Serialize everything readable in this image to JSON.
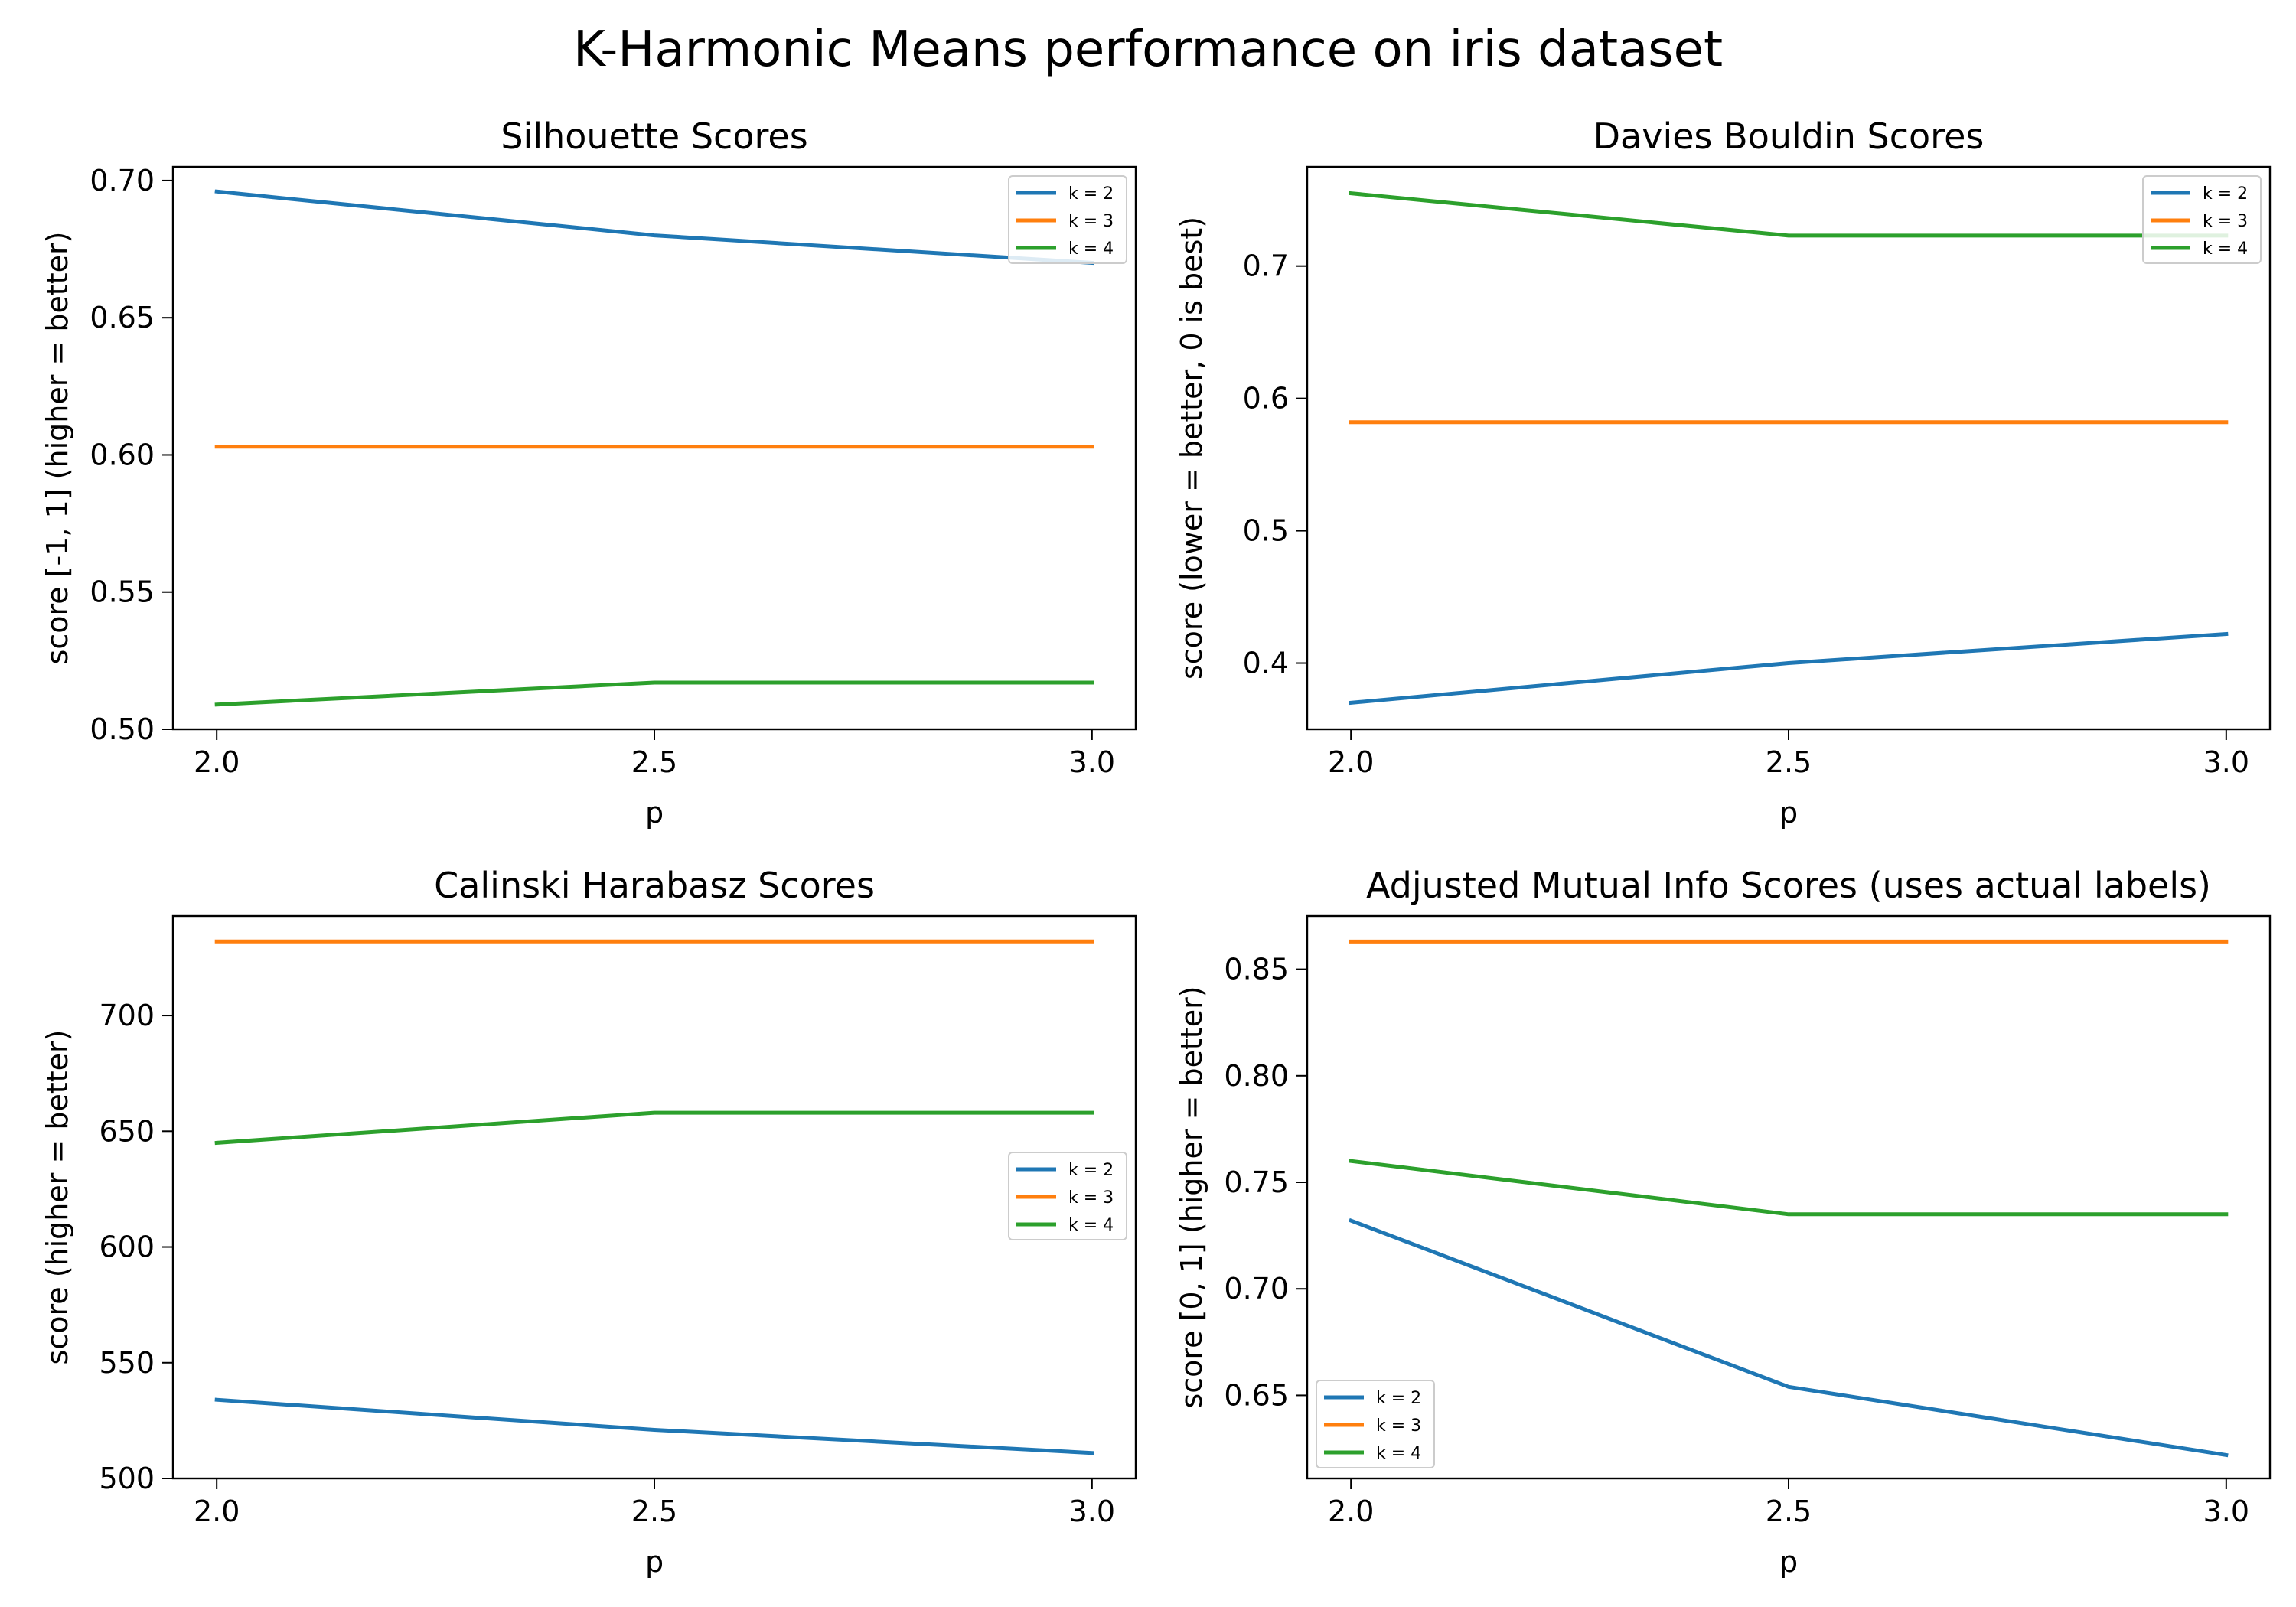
{
  "figure": {
    "title": "K-Harmonic Means performance on iris dataset"
  },
  "colors": {
    "k2": "#1f77b4",
    "k3": "#ff7f0e",
    "k4": "#2ca02c"
  },
  "chart_data": [
    {
      "type": "line",
      "title": "Silhouette Scores",
      "xlabel": "p",
      "ylabel": "score [-1, 1] (higher = better)",
      "xlim": [
        1.95,
        3.05
      ],
      "ylim": [
        0.5,
        0.705
      ],
      "xticks": [
        "2.0",
        "2.5",
        "3.0"
      ],
      "xtick_values": [
        2.0,
        2.5,
        3.0
      ],
      "yticks": [
        "0.50",
        "0.55",
        "0.60",
        "0.65",
        "0.70"
      ],
      "ytick_values": [
        0.5,
        0.55,
        0.6,
        0.65,
        0.7
      ],
      "legend_position": "top-right",
      "x": [
        2.0,
        2.5,
        3.0
      ],
      "series": [
        {
          "name": "k = 2",
          "color": "#1f77b4",
          "values": [
            0.696,
            0.68,
            0.67
          ]
        },
        {
          "name": "k = 3",
          "color": "#ff7f0e",
          "values": [
            0.603,
            0.603,
            0.603
          ]
        },
        {
          "name": "k = 4",
          "color": "#2ca02c",
          "values": [
            0.509,
            0.517,
            0.517
          ]
        }
      ]
    },
    {
      "type": "line",
      "title": "Davies Bouldin Scores",
      "xlabel": "p",
      "ylabel": "score (lower = better, 0 is best)",
      "xlim": [
        1.95,
        3.05
      ],
      "ylim": [
        0.35,
        0.775
      ],
      "xticks": [
        "2.0",
        "2.5",
        "3.0"
      ],
      "xtick_values": [
        2.0,
        2.5,
        3.0
      ],
      "yticks": [
        "0.4",
        "0.5",
        "0.6",
        "0.7"
      ],
      "ytick_values": [
        0.4,
        0.5,
        0.6,
        0.7
      ],
      "legend_position": "top-right",
      "x": [
        2.0,
        2.5,
        3.0
      ],
      "series": [
        {
          "name": "k = 2",
          "color": "#1f77b4",
          "values": [
            0.37,
            0.4,
            0.422
          ]
        },
        {
          "name": "k = 3",
          "color": "#ff7f0e",
          "values": [
            0.582,
            0.582,
            0.582
          ]
        },
        {
          "name": "k = 4",
          "color": "#2ca02c",
          "values": [
            0.755,
            0.723,
            0.723
          ]
        }
      ]
    },
    {
      "type": "line",
      "title": "Calinski Harabasz Scores",
      "xlabel": "p",
      "ylabel": "score (higher = better)",
      "xlim": [
        1.95,
        3.05
      ],
      "ylim": [
        500,
        743
      ],
      "xticks": [
        "2.0",
        "2.5",
        "3.0"
      ],
      "xtick_values": [
        2.0,
        2.5,
        3.0
      ],
      "yticks": [
        "500",
        "550",
        "600",
        "650",
        "700"
      ],
      "ytick_values": [
        500,
        550,
        600,
        650,
        700
      ],
      "legend_position": "center-right",
      "x": [
        2.0,
        2.5,
        3.0
      ],
      "series": [
        {
          "name": "k = 2",
          "color": "#1f77b4",
          "values": [
            534,
            521,
            511
          ]
        },
        {
          "name": "k = 3",
          "color": "#ff7f0e",
          "values": [
            732,
            732,
            732
          ]
        },
        {
          "name": "k = 4",
          "color": "#2ca02c",
          "values": [
            645,
            658,
            658
          ]
        }
      ]
    },
    {
      "type": "line",
      "title": "Adjusted Mutual Info Scores (uses actual labels)",
      "xlabel": "p",
      "ylabel": "score [0, 1] (higher = better)",
      "xlim": [
        1.95,
        3.05
      ],
      "ylim": [
        0.611,
        0.875
      ],
      "xticks": [
        "2.0",
        "2.5",
        "3.0"
      ],
      "xtick_values": [
        2.0,
        2.5,
        3.0
      ],
      "yticks": [
        "0.65",
        "0.70",
        "0.75",
        "0.80",
        "0.85"
      ],
      "ytick_values": [
        0.65,
        0.7,
        0.75,
        0.8,
        0.85
      ],
      "legend_position": "bottom-left",
      "x": [
        2.0,
        2.5,
        3.0
      ],
      "series": [
        {
          "name": "k = 2",
          "color": "#1f77b4",
          "values": [
            0.732,
            0.654,
            0.622
          ]
        },
        {
          "name": "k = 3",
          "color": "#ff7f0e",
          "values": [
            0.863,
            0.863,
            0.863
          ]
        },
        {
          "name": "k = 4",
          "color": "#2ca02c",
          "values": [
            0.76,
            0.735,
            0.735
          ]
        }
      ]
    }
  ]
}
